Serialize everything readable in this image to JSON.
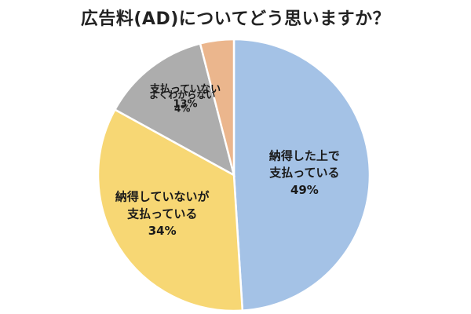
{
  "chart_data": {
    "type": "pie",
    "title": "広告料(AD)についてどう思いますか？",
    "slices": [
      {
        "label": "納得した上で\n支払っている",
        "value": 49,
        "value_label": "49%",
        "color": "#A4C2E6"
      },
      {
        "label": "納得していないが\n支払っている",
        "value": 34,
        "value_label": "34%",
        "color": "#F7D774"
      },
      {
        "label": "支払っていない",
        "value": 13,
        "value_label": "13%",
        "color": "#ADADAD"
      },
      {
        "label": "よくわからない",
        "value": 4,
        "value_label": "4%",
        "color": "#EBB68D"
      }
    ],
    "start_angle": "12 o'clock",
    "direction": "clockwise",
    "legend": "none (labels inside slices)"
  }
}
